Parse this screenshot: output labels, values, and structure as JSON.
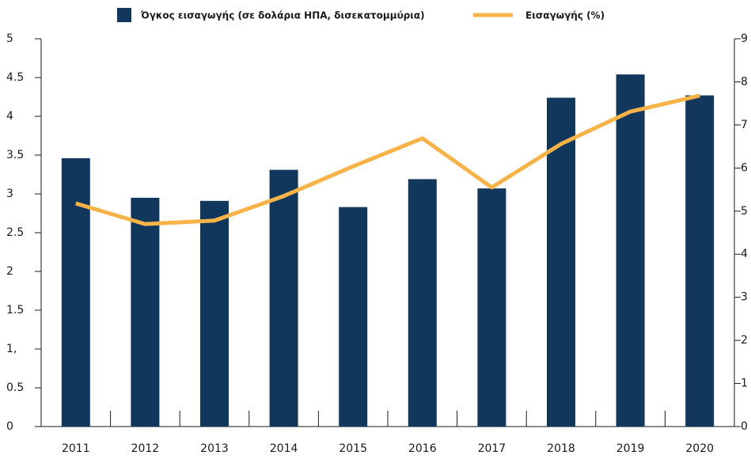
{
  "chart_data": {
    "type": "bar_line",
    "categories": [
      "2011",
      "2012",
      "2013",
      "2014",
      "2015",
      "2016",
      "2017",
      "2018",
      "2019",
      "2020"
    ],
    "series": [
      {
        "name": "Όγκος εισαγωγής  (σε δολάρια ΗΠΑ, δισεκατομμύρια)",
        "color": "#12375c",
        "type": "bar",
        "values": [
          3.46,
          2.95,
          2.91,
          3.31,
          2.83,
          3.19,
          3.07,
          4.24,
          4.54,
          4.27
        ]
      },
      {
        "name": "Εισαγωγής  (%)",
        "color": "#f7b347",
        "type": "line",
        "axis": "y2",
        "values": [
          5.18,
          4.7,
          4.78,
          5.35,
          6.04,
          6.69,
          5.55,
          6.56,
          7.31,
          7.68
        ]
      }
    ],
    "ylim": [
      0,
      5
    ],
    "yticks": [
      0,
      0.5,
      {
        "value": 1,
        "label": "1,"
      },
      1.5,
      2,
      2.5,
      3,
      3.5,
      4,
      4.5,
      5
    ],
    "y2lim": [
      0,
      9
    ],
    "y2ticks": [
      0,
      1,
      2,
      3,
      4,
      5,
      6,
      7,
      8,
      9
    ],
    "grid": false
  }
}
